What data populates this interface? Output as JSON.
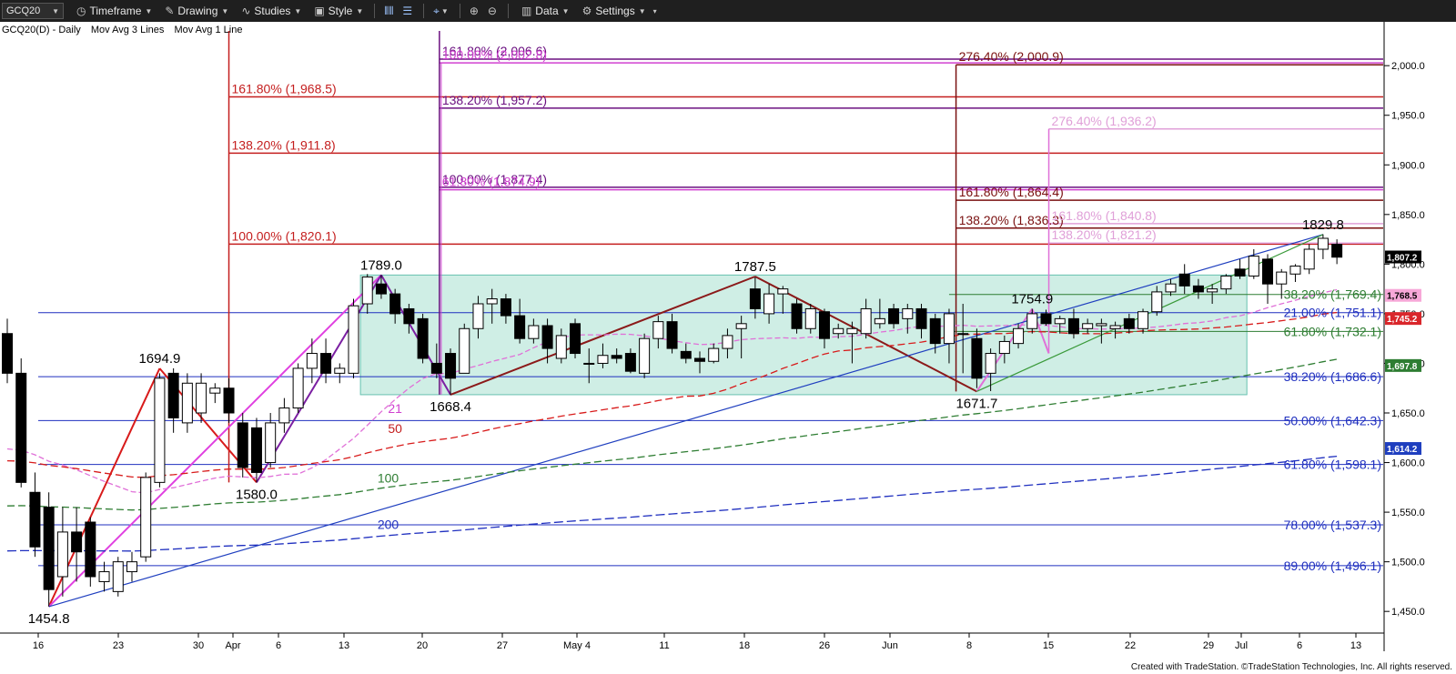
{
  "toolbar": {
    "symbol": "GCQ20",
    "timeframe": "Timeframe",
    "drawing": "Drawing",
    "studies": "Studies",
    "style": "Style",
    "data": "Data",
    "settings": "Settings"
  },
  "header": {
    "symbol_desc": "GCQ20(D) - Daily",
    "study1": "Mov Avg 3 Lines",
    "study2": "Mov Avg 1 Line"
  },
  "footer": "Created with TradeStation. ©TradeStation Technologies, Inc. All rights reserved.",
  "chart_data": {
    "type": "candlestick",
    "x_ticks": [
      "16",
      "23",
      "30",
      "Apr",
      "6",
      "13",
      "20",
      "27",
      "May 4",
      "11",
      "18",
      "26",
      "Jun",
      "8",
      "15",
      "22",
      "29",
      "Jul",
      "6",
      "13"
    ],
    "y_ticks": [
      1450,
      1500,
      1550,
      1600,
      1650,
      1700,
      1750,
      1800,
      1850,
      1900,
      1950,
      2000
    ],
    "ylim": [
      1430,
      2035
    ],
    "grid": false,
    "colors": {
      "up": "#ffffff",
      "down": "#000000",
      "axis": "#000000"
    },
    "candles": [
      {
        "o": 1730,
        "h": 1745,
        "l": 1680,
        "c": 1690
      },
      {
        "o": 1690,
        "h": 1705,
        "l": 1575,
        "c": 1580
      },
      {
        "o": 1570,
        "h": 1590,
        "l": 1505,
        "c": 1515
      },
      {
        "o": 1555,
        "h": 1570,
        "l": 1455,
        "c": 1472
      },
      {
        "o": 1485,
        "h": 1555,
        "l": 1465,
        "c": 1530
      },
      {
        "o": 1530,
        "h": 1555,
        "l": 1480,
        "c": 1510
      },
      {
        "o": 1540,
        "h": 1545,
        "l": 1475,
        "c": 1485
      },
      {
        "o": 1480,
        "h": 1500,
        "l": 1470,
        "c": 1490
      },
      {
        "o": 1470,
        "h": 1505,
        "l": 1465,
        "c": 1500
      },
      {
        "o": 1490,
        "h": 1510,
        "l": 1480,
        "c": 1500
      },
      {
        "o": 1505,
        "h": 1590,
        "l": 1500,
        "c": 1585
      },
      {
        "o": 1580,
        "h": 1690,
        "l": 1575,
        "c": 1685
      },
      {
        "o": 1690,
        "h": 1695,
        "l": 1630,
        "c": 1645
      },
      {
        "o": 1640,
        "h": 1690,
        "l": 1630,
        "c": 1680
      },
      {
        "o": 1650,
        "h": 1690,
        "l": 1640,
        "c": 1680
      },
      {
        "o": 1670,
        "h": 1680,
        "l": 1660,
        "c": 1675
      },
      {
        "o": 1675,
        "h": 1685,
        "l": 1640,
        "c": 1650
      },
      {
        "o": 1640,
        "h": 1650,
        "l": 1585,
        "c": 1595
      },
      {
        "o": 1635,
        "h": 1645,
        "l": 1580,
        "c": 1590
      },
      {
        "o": 1600,
        "h": 1650,
        "l": 1595,
        "c": 1640
      },
      {
        "o": 1640,
        "h": 1665,
        "l": 1630,
        "c": 1655
      },
      {
        "o": 1655,
        "h": 1700,
        "l": 1650,
        "c": 1695
      },
      {
        "o": 1695,
        "h": 1725,
        "l": 1680,
        "c": 1710
      },
      {
        "o": 1710,
        "h": 1725,
        "l": 1680,
        "c": 1690
      },
      {
        "o": 1690,
        "h": 1700,
        "l": 1680,
        "c": 1695
      },
      {
        "o": 1690,
        "h": 1765,
        "l": 1685,
        "c": 1758
      },
      {
        "o": 1760,
        "h": 1790,
        "l": 1750,
        "c": 1787
      },
      {
        "o": 1780,
        "h": 1789,
        "l": 1765,
        "c": 1770
      },
      {
        "o": 1770,
        "h": 1775,
        "l": 1740,
        "c": 1750
      },
      {
        "o": 1755,
        "h": 1760,
        "l": 1730,
        "c": 1740
      },
      {
        "o": 1745,
        "h": 1750,
        "l": 1700,
        "c": 1705
      },
      {
        "o": 1700,
        "h": 1720,
        "l": 1685,
        "c": 1690
      },
      {
        "o": 1710,
        "h": 1715,
        "l": 1668,
        "c": 1685
      },
      {
        "o": 1690,
        "h": 1740,
        "l": 1690,
        "c": 1735
      },
      {
        "o": 1735,
        "h": 1768,
        "l": 1725,
        "c": 1760
      },
      {
        "o": 1760,
        "h": 1775,
        "l": 1740,
        "c": 1765
      },
      {
        "o": 1765,
        "h": 1770,
        "l": 1740,
        "c": 1748
      },
      {
        "o": 1748,
        "h": 1765,
        "l": 1720,
        "c": 1725
      },
      {
        "o": 1725,
        "h": 1745,
        "l": 1720,
        "c": 1738
      },
      {
        "o": 1738,
        "h": 1745,
        "l": 1700,
        "c": 1715
      },
      {
        "o": 1705,
        "h": 1735,
        "l": 1700,
        "c": 1728
      },
      {
        "o": 1740,
        "h": 1745,
        "l": 1705,
        "c": 1710
      },
      {
        "o": 1700,
        "h": 1715,
        "l": 1680,
        "c": 1700
      },
      {
        "o": 1700,
        "h": 1720,
        "l": 1695,
        "c": 1708
      },
      {
        "o": 1708,
        "h": 1715,
        "l": 1700,
        "c": 1705
      },
      {
        "o": 1710,
        "h": 1715,
        "l": 1690,
        "c": 1692
      },
      {
        "o": 1690,
        "h": 1730,
        "l": 1685,
        "c": 1725
      },
      {
        "o": 1725,
        "h": 1748,
        "l": 1715,
        "c": 1742
      },
      {
        "o": 1742,
        "h": 1750,
        "l": 1710,
        "c": 1715
      },
      {
        "o": 1712,
        "h": 1720,
        "l": 1700,
        "c": 1705
      },
      {
        "o": 1705,
        "h": 1712,
        "l": 1690,
        "c": 1702
      },
      {
        "o": 1702,
        "h": 1720,
        "l": 1700,
        "c": 1715
      },
      {
        "o": 1715,
        "h": 1735,
        "l": 1705,
        "c": 1728
      },
      {
        "o": 1735,
        "h": 1748,
        "l": 1705,
        "c": 1740
      },
      {
        "o": 1775,
        "h": 1787,
        "l": 1745,
        "c": 1755
      },
      {
        "o": 1750,
        "h": 1780,
        "l": 1740,
        "c": 1770
      },
      {
        "o": 1770,
        "h": 1778,
        "l": 1750,
        "c": 1775
      },
      {
        "o": 1760,
        "h": 1765,
        "l": 1730,
        "c": 1735
      },
      {
        "o": 1735,
        "h": 1760,
        "l": 1730,
        "c": 1755
      },
      {
        "o": 1752,
        "h": 1755,
        "l": 1715,
        "c": 1725
      },
      {
        "o": 1730,
        "h": 1740,
        "l": 1725,
        "c": 1735
      },
      {
        "o": 1730,
        "h": 1742,
        "l": 1700,
        "c": 1735
      },
      {
        "o": 1730,
        "h": 1765,
        "l": 1725,
        "c": 1755
      },
      {
        "o": 1740,
        "h": 1765,
        "l": 1735,
        "c": 1745
      },
      {
        "o": 1755,
        "h": 1760,
        "l": 1735,
        "c": 1740
      },
      {
        "o": 1745,
        "h": 1760,
        "l": 1730,
        "c": 1755
      },
      {
        "o": 1755,
        "h": 1760,
        "l": 1725,
        "c": 1735
      },
      {
        "o": 1745,
        "h": 1750,
        "l": 1710,
        "c": 1720
      },
      {
        "o": 1720,
        "h": 1755,
        "l": 1700,
        "c": 1750
      },
      {
        "o": 1730,
        "h": 1760,
        "l": 1690,
        "c": 1730
      },
      {
        "o": 1725,
        "h": 1735,
        "l": 1675,
        "c": 1685
      },
      {
        "o": 1690,
        "h": 1715,
        "l": 1672,
        "c": 1710
      },
      {
        "o": 1710,
        "h": 1728,
        "l": 1700,
        "c": 1722
      },
      {
        "o": 1720,
        "h": 1740,
        "l": 1715,
        "c": 1735
      },
      {
        "o": 1735,
        "h": 1755,
        "l": 1730,
        "c": 1750
      },
      {
        "o": 1750,
        "h": 1754,
        "l": 1738,
        "c": 1740
      },
      {
        "o": 1740,
        "h": 1748,
        "l": 1730,
        "c": 1745
      },
      {
        "o": 1745,
        "h": 1755,
        "l": 1725,
        "c": 1730
      },
      {
        "o": 1735,
        "h": 1745,
        "l": 1730,
        "c": 1740
      },
      {
        "o": 1738,
        "h": 1745,
        "l": 1720,
        "c": 1740
      },
      {
        "o": 1735,
        "h": 1742,
        "l": 1725,
        "c": 1738
      },
      {
        "o": 1745,
        "h": 1750,
        "l": 1730,
        "c": 1735
      },
      {
        "o": 1735,
        "h": 1755,
        "l": 1730,
        "c": 1752
      },
      {
        "o": 1752,
        "h": 1778,
        "l": 1748,
        "c": 1772
      },
      {
        "o": 1772,
        "h": 1785,
        "l": 1768,
        "c": 1780
      },
      {
        "o": 1790,
        "h": 1800,
        "l": 1770,
        "c": 1778
      },
      {
        "o": 1778,
        "h": 1785,
        "l": 1765,
        "c": 1772
      },
      {
        "o": 1772,
        "h": 1780,
        "l": 1760,
        "c": 1775
      },
      {
        "o": 1775,
        "h": 1790,
        "l": 1770,
        "c": 1788
      },
      {
        "o": 1795,
        "h": 1805,
        "l": 1785,
        "c": 1788
      },
      {
        "o": 1788,
        "h": 1815,
        "l": 1785,
        "c": 1808
      },
      {
        "o": 1805,
        "h": 1810,
        "l": 1760,
        "c": 1780
      },
      {
        "o": 1780,
        "h": 1795,
        "l": 1765,
        "c": 1792
      },
      {
        "o": 1790,
        "h": 1800,
        "l": 1782,
        "c": 1798
      },
      {
        "o": 1795,
        "h": 1820,
        "l": 1790,
        "c": 1815
      },
      {
        "o": 1815,
        "h": 1830,
        "l": 1805,
        "c": 1826
      },
      {
        "o": 1820,
        "h": 1825,
        "l": 1800,
        "c": 1807
      }
    ],
    "price_labels": [
      {
        "text": "1,807.2",
        "value": 1807.2,
        "bg": "#000000",
        "fg": "#ffffff"
      },
      {
        "text": "1,768.5",
        "value": 1768.5,
        "bg": "#f7a8d8",
        "fg": "#000000"
      },
      {
        "text": "1,745.2",
        "value": 1745.2,
        "bg": "#d9262b",
        "fg": "#ffffff"
      },
      {
        "text": "1,697.8",
        "value": 1697.8,
        "bg": "#2e7d32",
        "fg": "#ffffff"
      },
      {
        "text": "1,614.2",
        "value": 1614.2,
        "bg": "#1f3fbf",
        "fg": "#ffffff"
      }
    ],
    "fib_levels": [
      {
        "text": "161.80% (1,968.5)",
        "value": 1968.5,
        "color": "#c41e1e",
        "group": "red"
      },
      {
        "text": "138.20% (1,911.8)",
        "value": 1911.8,
        "color": "#c41e1e",
        "group": "red"
      },
      {
        "text": "100.00% (1,820.1)",
        "value": 1820.1,
        "color": "#c41e1e",
        "group": "red"
      },
      {
        "text": "161.80% (2,006.6)",
        "value": 2006.6,
        "color": "#6b1080",
        "group": "purple"
      },
      {
        "text": "100.00% (2,002.8)",
        "value": 2002.8,
        "color": "#d040d0",
        "group": "magenta"
      },
      {
        "text": "138.20% (1,957.2)",
        "value": 1957.2,
        "color": "#6b1080",
        "group": "purple"
      },
      {
        "text": "100.00% (1,877.4)",
        "value": 1877.4,
        "color": "#6b1080",
        "group": "purple"
      },
      {
        "text": "61.80% (1,874.9)",
        "value": 1874.9,
        "color": "#d040d0",
        "group": "magenta"
      },
      {
        "text": "276.40% (2,000.9)",
        "value": 2000.9,
        "color": "#7a1010",
        "group": "maroon"
      },
      {
        "text": "161.80% (1,864.4)",
        "value": 1864.4,
        "color": "#7a1010",
        "group": "maroon"
      },
      {
        "text": "138.20% (1,836.3)",
        "value": 1836.3,
        "color": "#7a1010",
        "group": "maroon"
      },
      {
        "text": "276.40% (1,936.2)",
        "value": 1936.2,
        "color": "#e0a0d8",
        "group": "pink"
      },
      {
        "text": "161.80% (1,840.8)",
        "value": 1840.8,
        "color": "#e0a0d8",
        "group": "pink"
      },
      {
        "text": "138.20% (1,821.2)",
        "value": 1821.2,
        "color": "#e0a0d8",
        "group": "pink"
      }
    ],
    "retracements": [
      {
        "text": "38.20% (1,769.4)",
        "value": 1769.4,
        "color": "#2e7d32"
      },
      {
        "text": "21.00% (1,751.1)",
        "value": 1751.1,
        "color": "#1f2fbf"
      },
      {
        "text": "61.80% (1,732.1)",
        "value": 1732.1,
        "color": "#2e7d32"
      },
      {
        "text": "38.20% (1,686.6)",
        "value": 1686.6,
        "color": "#1f2fbf"
      },
      {
        "text": "50.00% (1,642.3)",
        "value": 1642.3,
        "color": "#1f2fbf"
      },
      {
        "text": "61.80% (1,598.1)",
        "value": 1598.1,
        "color": "#1f2fbf"
      },
      {
        "text": "78.00% (1,537.3)",
        "value": 1537.3,
        "color": "#1f2fbf"
      },
      {
        "text": "89.00% (1,496.1)",
        "value": 1496.1,
        "color": "#1f2fbf"
      }
    ],
    "swing_labels": [
      {
        "text": "1454.8",
        "i": 3,
        "v": 1454.8,
        "pos": "below"
      },
      {
        "text": "1694.9",
        "i": 11,
        "v": 1694.9,
        "pos": "above"
      },
      {
        "text": "1580.0",
        "i": 18,
        "v": 1580.0,
        "pos": "below"
      },
      {
        "text": "1789.0",
        "i": 27,
        "v": 1789.0,
        "pos": "above"
      },
      {
        "text": "1668.4",
        "i": 32,
        "v": 1668.4,
        "pos": "below"
      },
      {
        "text": "1787.5",
        "i": 54,
        "v": 1787.5,
        "pos": "above"
      },
      {
        "text": "1671.7",
        "i": 70,
        "v": 1671.7,
        "pos": "below"
      },
      {
        "text": "1754.9",
        "i": 74,
        "v": 1754.9,
        "pos": "above"
      },
      {
        "text": "1829.8",
        "i": 95,
        "v": 1829.8,
        "pos": "above"
      }
    ],
    "ma_labels": [
      {
        "text": "21",
        "color": "#d040d0"
      },
      {
        "text": "50",
        "color": "#c41e1e"
      },
      {
        "text": "100",
        "color": "#2e7d32"
      },
      {
        "text": "200",
        "color": "#1f2fbf"
      }
    ]
  }
}
